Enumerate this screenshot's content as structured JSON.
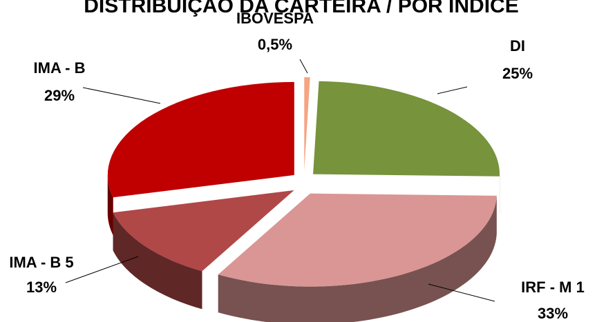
{
  "chart_data": {
    "type": "pie",
    "title": "DISTRIBUIÇÃO DA CARTEIRA / POR ÍNDICE",
    "categories": [
      "IBOVESPA",
      "DI",
      "IRF - M 1",
      "IMA - B 5",
      "IMA - B"
    ],
    "values": [
      0.5,
      25,
      33,
      13,
      29
    ],
    "value_labels": [
      "0,5%",
      "25%",
      "33%",
      "13%",
      "29%"
    ],
    "colors": [
      "#f4a582",
      "#77933c",
      "#d99694",
      "#b04848",
      "#c00000"
    ]
  }
}
